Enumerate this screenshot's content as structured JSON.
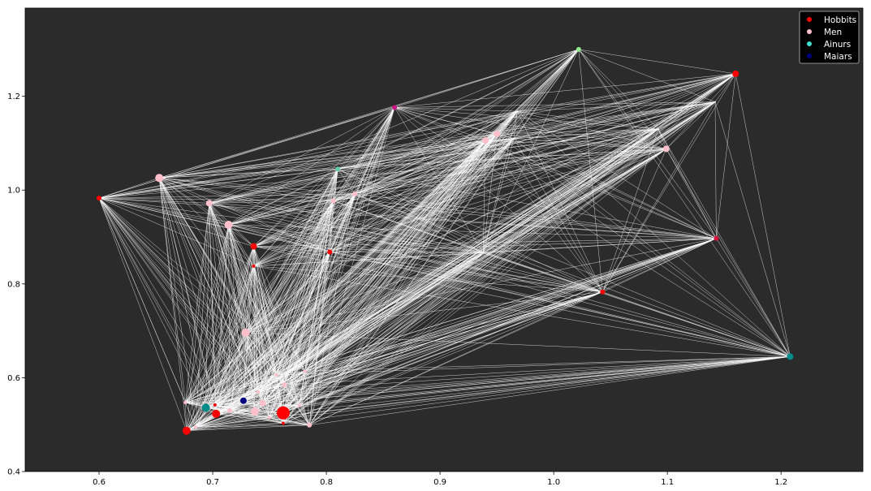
{
  "chart_data": {
    "type": "scatter",
    "title": "",
    "xlabel": "",
    "ylabel": "",
    "xlim": [
      0.535,
      1.272
    ],
    "ylim": [
      0.4,
      1.388
    ],
    "grid": false,
    "xticks": [
      0.6,
      0.7,
      0.8,
      0.9,
      1.0,
      1.1,
      1.2
    ],
    "xtick_labels": [
      "0.6",
      "0.7",
      "0.8",
      "0.9",
      "1.0",
      "1.1",
      "1.2"
    ],
    "yticks": [
      0.4,
      0.6,
      0.8,
      1.0,
      1.2
    ],
    "ytick_labels": [
      "0.4",
      "0.6",
      "0.8",
      "1.0",
      "1.2"
    ],
    "legend_position": "top-right",
    "colors": {
      "figure_background": "#ffffff",
      "axes_background": "#2b2b2b",
      "edge": "#ffffff",
      "legend_text": "#ffffff"
    },
    "series": [
      {
        "name": "Hobbits",
        "color": "#ff0000"
      },
      {
        "name": "Men",
        "color": "#ffc0cb"
      },
      {
        "name": "Ainurs",
        "color": "#40e0d0"
      },
      {
        "name": "Maiars",
        "color": "#000080"
      }
    ],
    "nodes": [
      {
        "x": 1.022,
        "y": 1.3,
        "color": "#90ee90",
        "size": 3
      },
      {
        "x": 1.16,
        "y": 1.248,
        "color": "#ff0000",
        "size": 4
      },
      {
        "x": 1.142,
        "y": 1.188,
        "color": "#ffffff",
        "size": 1
      },
      {
        "x": 0.86,
        "y": 1.176,
        "color": "#c71585",
        "size": 3
      },
      {
        "x": 0.968,
        "y": 1.168,
        "color": "#ffffff",
        "size": 1
      },
      {
        "x": 0.95,
        "y": 1.12,
        "color": "#ffc0cb",
        "size": 4
      },
      {
        "x": 0.94,
        "y": 1.106,
        "color": "#ffc0cb",
        "size": 4
      },
      {
        "x": 1.092,
        "y": 1.13,
        "color": "#ffffff",
        "size": 1
      },
      {
        "x": 0.965,
        "y": 1.11,
        "color": "#ffffff",
        "size": 1
      },
      {
        "x": 1.099,
        "y": 1.088,
        "color": "#ffc0cb",
        "size": 4
      },
      {
        "x": 0.81,
        "y": 1.045,
        "color": "#66cdaa",
        "size": 3
      },
      {
        "x": 0.653,
        "y": 1.026,
        "color": "#ffc0cb",
        "size": 5
      },
      {
        "x": 0.6,
        "y": 0.983,
        "color": "#ff0000",
        "size": 3
      },
      {
        "x": 0.825,
        "y": 0.992,
        "color": "#ffc0cb",
        "size": 3
      },
      {
        "x": 0.806,
        "y": 0.977,
        "color": "#ffc0cb",
        "size": 3
      },
      {
        "x": 0.697,
        "y": 0.972,
        "color": "#ffc0cb",
        "size": 4
      },
      {
        "x": 0.714,
        "y": 0.926,
        "color": "#ffc0cb",
        "size": 5
      },
      {
        "x": 1.143,
        "y": 0.897,
        "color": "#dc143c",
        "size": 3
      },
      {
        "x": 0.736,
        "y": 0.88,
        "color": "#ff0000",
        "size": 4
      },
      {
        "x": 0.803,
        "y": 0.868,
        "color": "#ff0000",
        "size": 3
      },
      {
        "x": 0.938,
        "y": 0.866,
        "color": "#ffffff",
        "size": 1
      },
      {
        "x": 0.736,
        "y": 0.838,
        "color": "#ff0000",
        "size": 2
      },
      {
        "x": 1.043,
        "y": 0.783,
        "color": "#ff0000",
        "size": 3
      },
      {
        "x": 0.729,
        "y": 0.696,
        "color": "#ffc0cb",
        "size": 5
      },
      {
        "x": 1.208,
        "y": 0.645,
        "color": "#008b8b",
        "size": 4
      },
      {
        "x": 0.781,
        "y": 0.614,
        "color": "#ffc0cb",
        "size": 2
      },
      {
        "x": 0.756,
        "y": 0.606,
        "color": "#ffc0cb",
        "size": 2
      },
      {
        "x": 0.763,
        "y": 0.585,
        "color": "#ffc0cb",
        "size": 3
      },
      {
        "x": 0.74,
        "y": 0.57,
        "color": "#ffc0cb",
        "size": 2
      },
      {
        "x": 0.727,
        "y": 0.551,
        "color": "#000080",
        "size": 4
      },
      {
        "x": 0.676,
        "y": 0.547,
        "color": "#ffc0cb",
        "size": 2
      },
      {
        "x": 0.744,
        "y": 0.546,
        "color": "#ffc0cb",
        "size": 4
      },
      {
        "x": 0.702,
        "y": 0.542,
        "color": "#ff0000",
        "size": 2
      },
      {
        "x": 0.776,
        "y": 0.541,
        "color": "#ffc0cb",
        "size": 2
      },
      {
        "x": 0.694,
        "y": 0.536,
        "color": "#008b8b",
        "size": 5
      },
      {
        "x": 0.715,
        "y": 0.53,
        "color": "#ffc0cb",
        "size": 3
      },
      {
        "x": 0.737,
        "y": 0.528,
        "color": "#ffc0cb",
        "size": 5
      },
      {
        "x": 0.762,
        "y": 0.525,
        "color": "#ff0000",
        "size": 8
      },
      {
        "x": 0.703,
        "y": 0.523,
        "color": "#ff0000",
        "size": 5
      },
      {
        "x": 0.75,
        "y": 0.515,
        "color": "#ffc0cb",
        "size": 2
      },
      {
        "x": 0.762,
        "y": 0.503,
        "color": "#ff0000",
        "size": 2
      },
      {
        "x": 0.785,
        "y": 0.499,
        "color": "#ffc0cb",
        "size": 3
      },
      {
        "x": 0.685,
        "y": 0.495,
        "color": "#ffc0cb",
        "size": 2
      },
      {
        "x": 0.677,
        "y": 0.487,
        "color": "#ff0000",
        "size": 5
      }
    ]
  }
}
